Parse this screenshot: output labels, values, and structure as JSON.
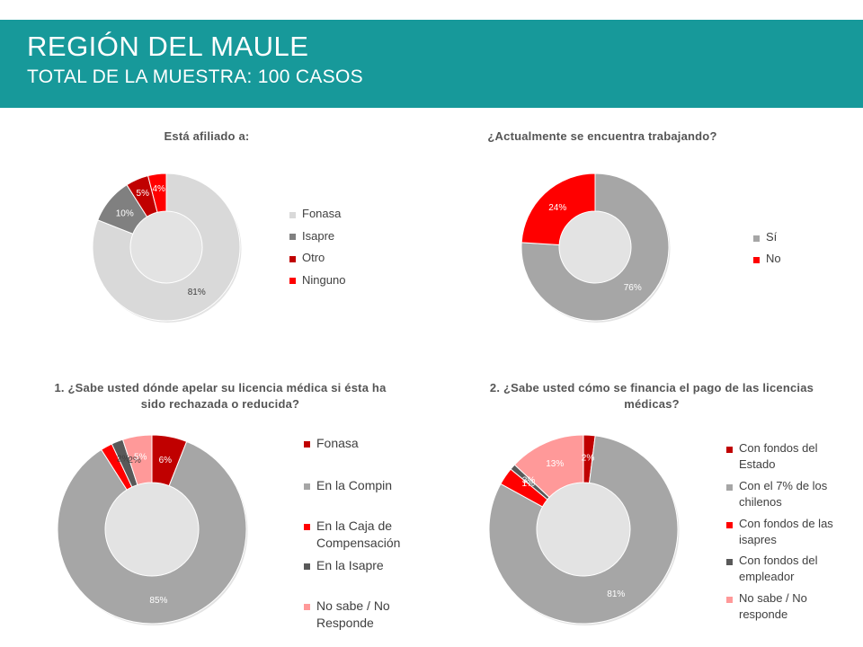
{
  "header": {
    "title": "REGIÓN DEL MAULE",
    "subtitle": "TOTAL DE LA MUESTRA: 100 CASOS"
  },
  "chart_data": [
    {
      "type": "pie",
      "title": "Está afiliado a:",
      "categories": [
        "Fonasa",
        "Isapre",
        "Otro",
        "Ninguno"
      ],
      "values": [
        81,
        10,
        5,
        4
      ],
      "data_labels": [
        "81%",
        "10%",
        "5%",
        "4%"
      ],
      "colors": [
        "#d9d9d9",
        "#808080",
        "#c00000",
        "#ff0000"
      ],
      "label_colors": [
        "#404040",
        "#ffffff",
        "#ffffff",
        "#ffffff"
      ],
      "legend_position": "right"
    },
    {
      "type": "pie",
      "title": "¿Actualmente se encuentra trabajando?",
      "categories": [
        "Sí",
        "No"
      ],
      "values": [
        76,
        24
      ],
      "data_labels": [
        "76%",
        "24%"
      ],
      "colors": [
        "#a6a6a6",
        "#ff0000"
      ],
      "label_colors": [
        "#ffffff",
        "#ffffff"
      ],
      "legend_position": "right"
    },
    {
      "type": "pie",
      "title": "1. ¿Sabe usted dónde apelar su licencia médica si ésta ha sido rechazada o reducida?",
      "categories": [
        "Fonasa",
        "En la Compin",
        "En la Caja de Compensación",
        "En la Isapre",
        "No sabe / No Responde"
      ],
      "values": [
        6,
        85,
        2,
        2,
        5
      ],
      "data_labels": [
        "6%",
        "85%",
        "2%",
        "2%",
        "5%"
      ],
      "colors": [
        "#c00000",
        "#a6a6a6",
        "#ff0000",
        "#595959",
        "#ff9999"
      ],
      "label_colors": [
        "#ffffff",
        "#ffffff",
        "#404040",
        "#404040",
        "#ffffff"
      ],
      "legend_position": "right"
    },
    {
      "type": "pie",
      "title": "2. ¿Sabe usted cómo se financia el pago de las licencias médicas?",
      "categories": [
        "Con fondos del Estado",
        "Con el 7% de los chilenos",
        "Con fondos de las isapres",
        "Con fondos del empleador",
        "No sabe / No responde"
      ],
      "values": [
        2,
        81,
        3,
        1,
        13
      ],
      "data_labels": [
        "2%",
        "81%",
        "3%",
        "1%",
        "13%"
      ],
      "colors": [
        "#c00000",
        "#a6a6a6",
        "#ff0000",
        "#595959",
        "#ff9999"
      ],
      "label_colors": [
        "#ffffff",
        "#ffffff",
        "#ffffff",
        "#ffffff",
        "#ffffff"
      ],
      "legend_position": "right"
    }
  ]
}
